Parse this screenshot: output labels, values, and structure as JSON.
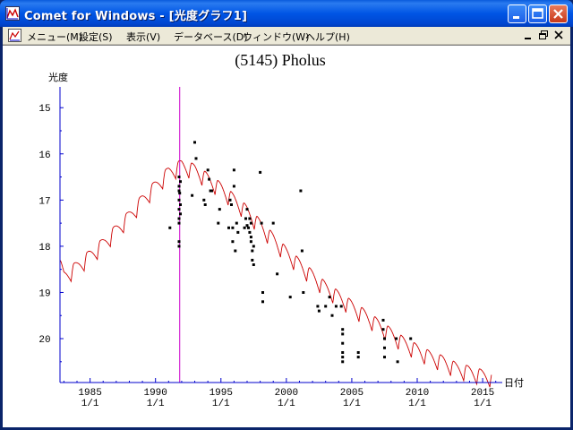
{
  "window": {
    "title": "Comet for Windows - [光度グラフ1]",
    "buttons": [
      "minimize",
      "maximize",
      "close"
    ]
  },
  "menubar": {
    "items": [
      {
        "label": "メニュー(M)"
      },
      {
        "label": "設定(S)"
      },
      {
        "label": "表示(V)"
      },
      {
        "label": "データベース(D)"
      },
      {
        "label": "ウィンドウ(W)"
      },
      {
        "label": "ヘルプ(H)"
      }
    ]
  },
  "colors": {
    "curve": "#cc0000",
    "points": "#000000",
    "axis": "#0000cc",
    "current_date_line": "#cc00cc"
  },
  "chart_data": {
    "type": "line",
    "title": "(5145) Pholus",
    "ylabel": "光度",
    "xlabel": "日付",
    "y_inverted": true,
    "ylim": [
      20.95,
      14.55
    ],
    "xlim": [
      1982.7,
      2016.5
    ],
    "y_ticks": [
      "15",
      "16",
      "17",
      "18",
      "19",
      "20"
    ],
    "x_ticks": [
      {
        "year": "1985",
        "date": "1/1",
        "value": 1985
      },
      {
        "year": "1990",
        "date": "1/1",
        "value": 1990
      },
      {
        "year": "1995",
        "date": "1/1",
        "value": 1995
      },
      {
        "year": "2000",
        "date": "1/1",
        "value": 2000
      },
      {
        "year": "2005",
        "date": "1/1",
        "value": 2005
      },
      {
        "year": "2010",
        "date": "1/1",
        "value": 2010
      },
      {
        "year": "2015",
        "date": "1/1",
        "value": 2015
      }
    ],
    "current_date_marker": 1991.85,
    "predicted_curve_anchors": [
      [
        1982.7,
        18.5
      ],
      [
        1983.0,
        18.75
      ],
      [
        1984.0,
        18.55
      ],
      [
        1985.0,
        18.3
      ],
      [
        1986.0,
        18.05
      ],
      [
        1987.0,
        17.75
      ],
      [
        1988.0,
        17.45
      ],
      [
        1989.0,
        17.1
      ],
      [
        1990.0,
        16.8
      ],
      [
        1991.0,
        16.5
      ],
      [
        1992.0,
        16.35
      ],
      [
        1993.0,
        16.45
      ],
      [
        1994.0,
        16.65
      ],
      [
        1995.0,
        16.85
      ],
      [
        1996.0,
        17.1
      ],
      [
        1997.0,
        17.35
      ],
      [
        1998.0,
        17.65
      ],
      [
        1999.0,
        17.95
      ],
      [
        2000.0,
        18.25
      ],
      [
        2001.0,
        18.5
      ],
      [
        2002.0,
        18.75
      ],
      [
        2003.0,
        19.0
      ],
      [
        2004.0,
        19.2
      ],
      [
        2005.0,
        19.4
      ],
      [
        2006.0,
        19.6
      ],
      [
        2007.0,
        19.8
      ],
      [
        2008.0,
        20.0
      ],
      [
        2009.0,
        20.2
      ],
      [
        2010.0,
        20.35
      ],
      [
        2011.0,
        20.5
      ],
      [
        2012.0,
        20.6
      ],
      [
        2013.0,
        20.75
      ],
      [
        2014.0,
        20.82
      ],
      [
        2015.0,
        20.9
      ],
      [
        2016.0,
        20.95
      ]
    ],
    "seasonal_amplitude": 0.35,
    "observations": [
      [
        1991.1,
        17.6
      ],
      [
        1991.8,
        16.5
      ],
      [
        1991.8,
        16.7
      ],
      [
        1991.8,
        16.8
      ],
      [
        1991.8,
        17.0
      ],
      [
        1991.8,
        17.2
      ],
      [
        1991.8,
        17.4
      ],
      [
        1991.8,
        17.5
      ],
      [
        1991.8,
        17.9
      ],
      [
        1991.8,
        18.0
      ],
      [
        1991.85,
        16.85
      ],
      [
        1991.9,
        17.1
      ],
      [
        1991.9,
        17.3
      ],
      [
        1991.9,
        16.6
      ],
      [
        1992.8,
        16.9
      ],
      [
        1993.0,
        15.75
      ],
      [
        1993.1,
        16.1
      ],
      [
        1993.7,
        17.0
      ],
      [
        1993.8,
        17.1
      ],
      [
        1994.0,
        16.35
      ],
      [
        1994.1,
        16.55
      ],
      [
        1994.2,
        16.8
      ],
      [
        1994.3,
        16.8
      ],
      [
        1994.8,
        17.5
      ],
      [
        1994.9,
        17.2
      ],
      [
        1995.6,
        17.6
      ],
      [
        1995.7,
        17.0
      ],
      [
        1995.8,
        17.1
      ],
      [
        1995.9,
        17.6
      ],
      [
        1995.9,
        17.9
      ],
      [
        1996.0,
        16.35
      ],
      [
        1996.0,
        16.7
      ],
      [
        1996.1,
        18.1
      ],
      [
        1996.2,
        17.5
      ],
      [
        1996.3,
        17.7
      ],
      [
        1996.8,
        17.6
      ],
      [
        1996.9,
        17.4
      ],
      [
        1997.0,
        17.2
      ],
      [
        1997.0,
        17.55
      ],
      [
        1997.1,
        17.6
      ],
      [
        1997.2,
        17.4
      ],
      [
        1997.2,
        17.7
      ],
      [
        1997.3,
        17.8
      ],
      [
        1997.3,
        17.5
      ],
      [
        1997.3,
        17.9
      ],
      [
        1997.4,
        18.1
      ],
      [
        1997.4,
        18.3
      ],
      [
        1997.5,
        18.4
      ],
      [
        1997.5,
        18.0
      ],
      [
        1998.0,
        16.4
      ],
      [
        1998.1,
        17.5
      ],
      [
        1998.2,
        19.0
      ],
      [
        1998.2,
        19.2
      ],
      [
        1999.0,
        17.5
      ],
      [
        1999.3,
        18.6
      ],
      [
        2000.3,
        19.1
      ],
      [
        2001.1,
        16.8
      ],
      [
        2001.2,
        18.1
      ],
      [
        2001.3,
        19.0
      ],
      [
        2002.4,
        19.3
      ],
      [
        2002.5,
        19.4
      ],
      [
        2003.0,
        19.3
      ],
      [
        2003.3,
        19.1
      ],
      [
        2003.5,
        19.5
      ],
      [
        2003.8,
        19.3
      ],
      [
        2004.2,
        19.3
      ],
      [
        2004.3,
        19.8
      ],
      [
        2004.3,
        19.9
      ],
      [
        2004.3,
        20.1
      ],
      [
        2004.3,
        20.3
      ],
      [
        2004.3,
        20.4
      ],
      [
        2004.3,
        20.5
      ],
      [
        2005.5,
        20.3
      ],
      [
        2005.5,
        20.4
      ],
      [
        2007.4,
        19.6
      ],
      [
        2007.4,
        19.8
      ],
      [
        2007.5,
        20.0
      ],
      [
        2007.5,
        20.2
      ],
      [
        2007.5,
        20.4
      ],
      [
        2008.4,
        20.0
      ],
      [
        2008.5,
        20.5
      ],
      [
        2009.5,
        20.0
      ]
    ]
  }
}
